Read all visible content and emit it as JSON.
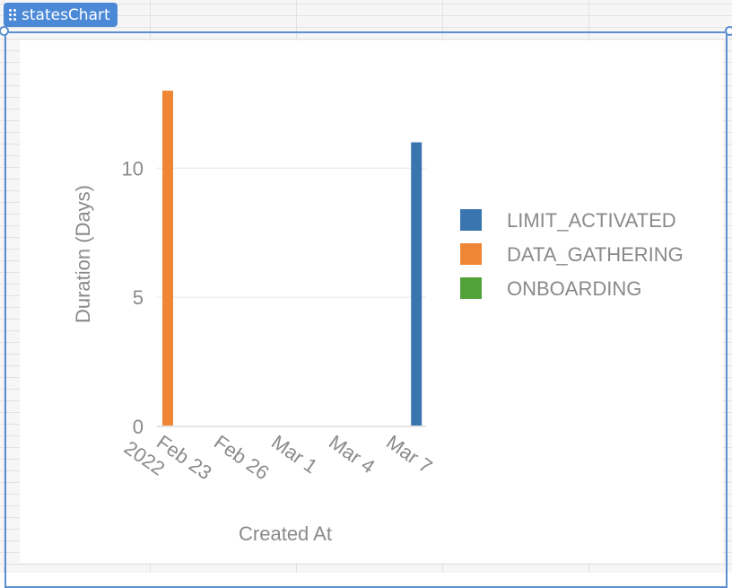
{
  "widget": {
    "name": "statesChart"
  },
  "chart_data": {
    "type": "bar",
    "xlabel": "Created At",
    "ylabel": "Duration (Days)",
    "ylim": [
      0,
      13
    ],
    "yticks": [
      0,
      5,
      10
    ],
    "grid": true,
    "legend_placement": "right",
    "x_ticks": [
      "Feb 23\n2022",
      "Feb 26",
      "Mar 1",
      "Mar 4",
      "Mar 7"
    ],
    "x_range": [
      "2022-02-23",
      "2022-03-07"
    ],
    "series": [
      {
        "name": "LIMIT_ACTIVATED",
        "color": "#3a75b0",
        "points": [
          {
            "x": "2022-03-07",
            "y": 11
          }
        ]
      },
      {
        "name": "DATA_GATHERING",
        "color": "#ef8636",
        "points": [
          {
            "x": "2022-02-23",
            "y": 13
          }
        ]
      },
      {
        "name": "ONBOARDING",
        "color": "#52a23a",
        "points": []
      }
    ]
  }
}
